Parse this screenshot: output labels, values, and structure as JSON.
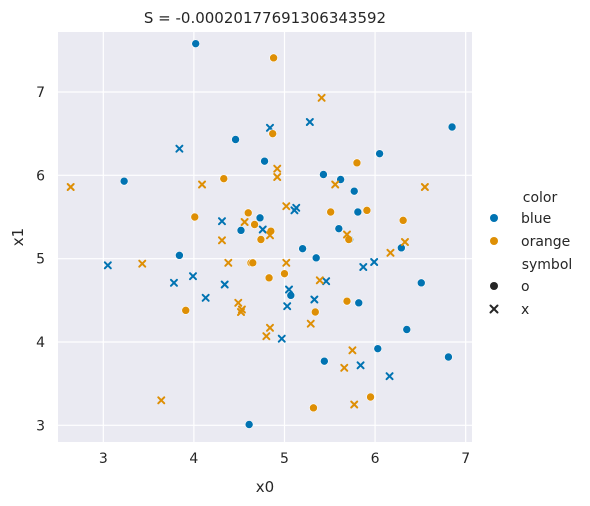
{
  "chart_data": {
    "type": "scatter",
    "title": "S = -0.00020177691306343592",
    "xlabel": "x0",
    "ylabel": "x1",
    "xlim": [
      2.5,
      7.07
    ],
    "ylim": [
      2.8,
      7.72
    ],
    "xticks": [
      3,
      4,
      5,
      6,
      7
    ],
    "yticks": [
      3,
      4,
      5,
      6,
      7
    ],
    "grid": true,
    "legend": {
      "placement": "right",
      "color_title": "color",
      "symbol_title": "symbol",
      "colors": [
        {
          "label": "blue",
          "color": "#0173b2"
        },
        {
          "label": "orange",
          "color": "#de8f05"
        }
      ],
      "symbols": [
        {
          "label": "o",
          "marker": "circle"
        },
        {
          "label": "x",
          "marker": "x"
        }
      ]
    },
    "series": [
      {
        "color_key": "blue",
        "symbol_key": "o",
        "color": "#0173b2",
        "marker": "circle",
        "points": [
          [
            4.02,
            7.58
          ],
          [
            3.23,
            5.93
          ],
          [
            4.46,
            6.43
          ],
          [
            4.78,
            6.17
          ],
          [
            4.73,
            5.49
          ],
          [
            4.52,
            5.34
          ],
          [
            3.84,
            5.04
          ],
          [
            5.2,
            5.12
          ],
          [
            5.35,
            5.01
          ],
          [
            5.07,
            4.56
          ],
          [
            5.43,
            6.01
          ],
          [
            5.62,
            5.95
          ],
          [
            5.77,
            5.81
          ],
          [
            5.81,
            5.56
          ],
          [
            5.6,
            5.36
          ],
          [
            6.05,
            6.26
          ],
          [
            6.85,
            6.58
          ],
          [
            6.29,
            5.13
          ],
          [
            6.51,
            4.71
          ],
          [
            5.82,
            4.47
          ],
          [
            6.35,
            4.15
          ],
          [
            6.03,
            3.92
          ],
          [
            5.44,
            3.77
          ],
          [
            6.81,
            3.82
          ],
          [
            4.61,
            3.01
          ],
          [
            5.72,
            5.23
          ]
        ]
      },
      {
        "color_key": "blue",
        "symbol_key": "x",
        "color": "#0173b2",
        "marker": "x",
        "points": [
          [
            4.84,
            6.57
          ],
          [
            5.28,
            6.64
          ],
          [
            3.84,
            6.32
          ],
          [
            5.11,
            5.58
          ],
          [
            5.13,
            5.61
          ],
          [
            4.31,
            5.45
          ],
          [
            4.76,
            5.35
          ],
          [
            3.05,
            4.92
          ],
          [
            3.78,
            4.71
          ],
          [
            3.99,
            4.79
          ],
          [
            4.13,
            4.53
          ],
          [
            4.34,
            4.69
          ],
          [
            5.05,
            4.63
          ],
          [
            5.03,
            4.43
          ],
          [
            5.33,
            4.51
          ],
          [
            5.46,
            4.73
          ],
          [
            5.87,
            4.9
          ],
          [
            5.99,
            4.96
          ],
          [
            4.97,
            4.04
          ],
          [
            5.84,
            3.72
          ],
          [
            6.16,
            3.59
          ]
        ]
      },
      {
        "color_key": "orange",
        "symbol_key": "o",
        "color": "#de8f05",
        "marker": "circle",
        "points": [
          [
            4.88,
            7.41
          ],
          [
            4.87,
            6.5
          ],
          [
            4.33,
            5.96
          ],
          [
            5.8,
            6.15
          ],
          [
            4.01,
            5.5
          ],
          [
            4.6,
            5.55
          ],
          [
            4.67,
            5.41
          ],
          [
            4.74,
            5.23
          ],
          [
            4.85,
            5.33
          ],
          [
            5.51,
            5.56
          ],
          [
            5.91,
            5.58
          ],
          [
            6.31,
            5.46
          ],
          [
            5.71,
            5.23
          ],
          [
            4.63,
            4.95
          ],
          [
            4.65,
            4.95
          ],
          [
            5.0,
            4.82
          ],
          [
            4.83,
            4.77
          ],
          [
            3.91,
            4.38
          ],
          [
            5.34,
            4.36
          ],
          [
            5.69,
            4.49
          ],
          [
            5.95,
            3.34
          ],
          [
            5.32,
            3.21
          ]
        ]
      },
      {
        "color_key": "orange",
        "symbol_key": "x",
        "color": "#de8f05",
        "marker": "x",
        "points": [
          [
            5.41,
            6.93
          ],
          [
            2.64,
            5.86
          ],
          [
            4.09,
            5.89
          ],
          [
            4.92,
            6.08
          ],
          [
            4.92,
            5.98
          ],
          [
            5.02,
            5.63
          ],
          [
            5.56,
            5.89
          ],
          [
            6.55,
            5.86
          ],
          [
            4.56,
            5.44
          ],
          [
            4.84,
            5.28
          ],
          [
            4.31,
            5.22
          ],
          [
            4.38,
            4.95
          ],
          [
            3.43,
            4.94
          ],
          [
            5.02,
            4.95
          ],
          [
            5.69,
            5.29
          ],
          [
            6.17,
            5.07
          ],
          [
            6.33,
            5.2
          ],
          [
            5.39,
            4.74
          ],
          [
            4.49,
            4.47
          ],
          [
            4.53,
            4.39
          ],
          [
            4.84,
            4.17
          ],
          [
            4.8,
            4.07
          ],
          [
            5.29,
            4.22
          ],
          [
            5.75,
            3.9
          ],
          [
            5.66,
            3.69
          ],
          [
            3.64,
            3.3
          ],
          [
            5.77,
            3.25
          ],
          [
            4.52,
            4.36
          ]
        ]
      }
    ]
  }
}
